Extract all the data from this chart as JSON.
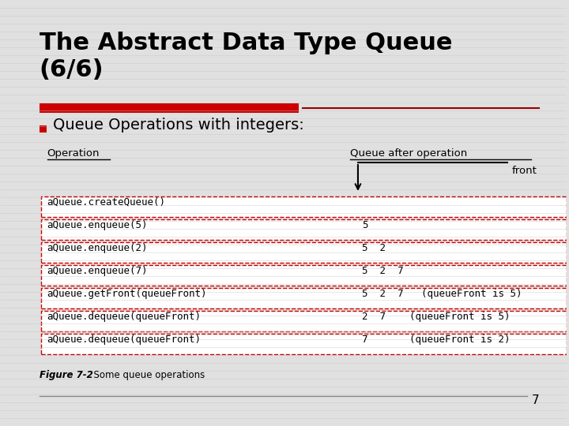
{
  "title": "The Abstract Data Type Queue\n(6/6)",
  "bullet": "Queue Operations with integers:",
  "bg_color": "#e0e0e0",
  "red_bar_color": "#cc0000",
  "table_header_op": "Operation",
  "table_header_q": "Queue after operation",
  "front_label": "front",
  "rows": [
    {
      "op": "aQueue.createQueue()",
      "q": ""
    },
    {
      "op": "aQueue.enqueue(5)",
      "q": "5"
    },
    {
      "op": "aQueue.enqueue(2)",
      "q": "5  2"
    },
    {
      "op": "aQueue.enqueue(7)",
      "q": "5  2  7"
    },
    {
      "op": "aQueue.getFront(queueFront)",
      "q": "5  2  7   (queueFront is 5)"
    },
    {
      "op": "aQueue.dequeue(queueFront)",
      "q": "2  7    (queueFront is 5)"
    },
    {
      "op": "aQueue.dequeue(queueFront)",
      "q": "7       (queueFront is 2)"
    }
  ],
  "caption_bold": "Figure 7-2",
  "caption_normal": "  Some queue operations",
  "page_number": "7"
}
